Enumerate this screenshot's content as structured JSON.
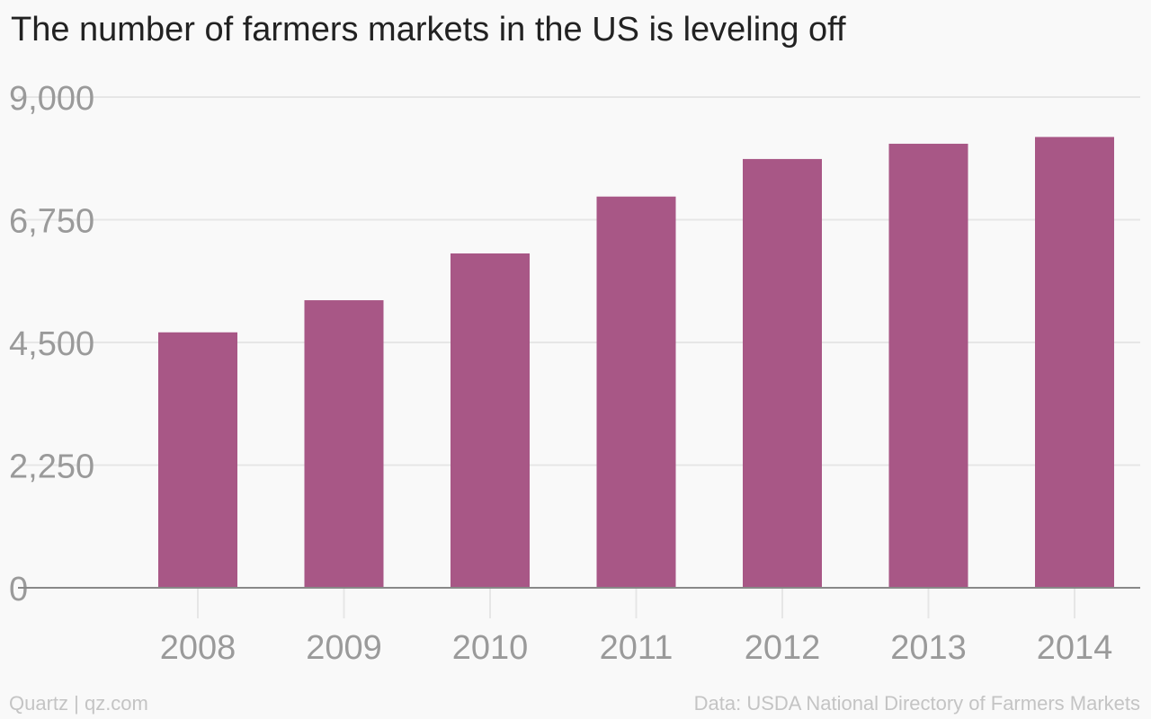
{
  "footer": {
    "source_left": "Quartz | qz.com",
    "source_right": "Data: USDA National Directory of Farmers Markets"
  },
  "colors": {
    "bar": "#a85786",
    "grid": "#e6e6e6",
    "baseline": "#888888",
    "tick_text": "#9a9a9a",
    "background": "#f9f9f9"
  },
  "chart_data": {
    "type": "bar",
    "title": "The number of farmers markets in the US is leveling off",
    "xlabel": "",
    "ylabel": "",
    "categories": [
      "2008",
      "2009",
      "2010",
      "2011",
      "2012",
      "2013",
      "2014"
    ],
    "values": [
      4685,
      5274,
      6132,
      7175,
      7864,
      8144,
      8268
    ],
    "ylim": [
      0,
      9000
    ],
    "yticks": [
      0,
      2250,
      4500,
      6750,
      9000
    ],
    "ytick_labels": [
      "0",
      "2,250",
      "4,500",
      "6,750",
      "9,000"
    ],
    "grid": true,
    "legend": "none"
  }
}
